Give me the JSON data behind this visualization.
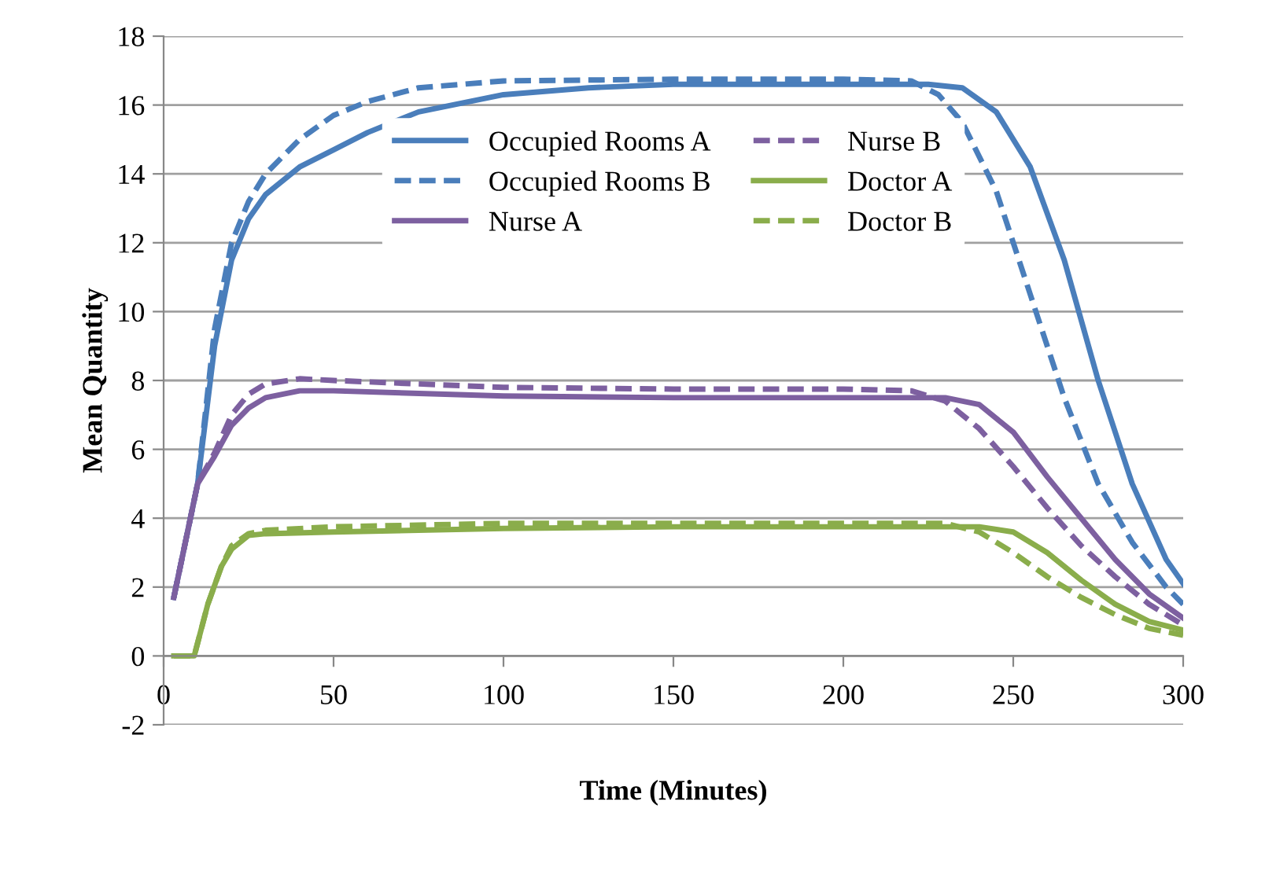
{
  "chart_data": {
    "type": "line",
    "xlabel": "Time (Minutes)",
    "ylabel": "Mean Quantity",
    "xlim": [
      0,
      300
    ],
    "ylim": [
      -2,
      18
    ],
    "xticks": [
      0,
      50,
      100,
      150,
      200,
      250,
      300
    ],
    "yticks": [
      -2,
      0,
      2,
      4,
      6,
      8,
      10,
      12,
      14,
      16,
      18
    ],
    "grid": "y",
    "legend": "top",
    "marker": "none",
    "series": [
      {
        "name": "Occupied Rooms A",
        "color": "#4a7ebb",
        "line_style": "solid",
        "x": [
          3,
          10,
          15,
          20,
          25,
          30,
          40,
          50,
          60,
          75,
          100,
          125,
          150,
          200,
          225,
          235,
          245,
          255,
          265,
          275,
          285,
          295,
          300
        ],
        "values": [
          1.7,
          5,
          9,
          11.5,
          12.7,
          13.4,
          14.2,
          14.7,
          15.2,
          15.8,
          16.3,
          16.5,
          16.6,
          16.6,
          16.6,
          16.5,
          15.8,
          14.2,
          11.5,
          8,
          5,
          2.8,
          2.1
        ]
      },
      {
        "name": "Occupied Rooms B",
        "color": "#4a7ebb",
        "line_style": "dashed",
        "x": [
          3,
          10,
          15,
          20,
          25,
          30,
          40,
          50,
          60,
          75,
          100,
          150,
          200,
          220,
          228,
          235,
          245,
          255,
          265,
          275,
          285,
          295,
          300
        ],
        "values": [
          1.7,
          5,
          9.5,
          12,
          13.2,
          14,
          15,
          15.7,
          16.1,
          16.5,
          16.7,
          16.75,
          16.75,
          16.7,
          16.3,
          15.5,
          13.5,
          10.5,
          7.5,
          5,
          3.3,
          2,
          1.5
        ]
      },
      {
        "name": "Nurse A",
        "color": "#7d60a0",
        "line_style": "solid",
        "x": [
          3,
          10,
          15,
          20,
          25,
          30,
          40,
          50,
          100,
          150,
          200,
          230,
          240,
          250,
          260,
          270,
          280,
          290,
          300
        ],
        "values": [
          1.7,
          5,
          5.8,
          6.7,
          7.2,
          7.5,
          7.7,
          7.7,
          7.55,
          7.5,
          7.5,
          7.5,
          7.3,
          6.5,
          5.2,
          4,
          2.8,
          1.8,
          1.1
        ]
      },
      {
        "name": "Nurse B",
        "color": "#7d60a0",
        "line_style": "dashed",
        "x": [
          3,
          10,
          15,
          20,
          25,
          30,
          40,
          50,
          100,
          150,
          200,
          220,
          230,
          240,
          250,
          260,
          270,
          280,
          290,
          300
        ],
        "values": [
          1.7,
          5,
          5.9,
          7,
          7.6,
          7.9,
          8.05,
          8,
          7.8,
          7.75,
          7.75,
          7.7,
          7.4,
          6.6,
          5.5,
          4.3,
          3.2,
          2.3,
          1.5,
          0.9
        ]
      },
      {
        "name": "Doctor A",
        "color": "#8aad4b",
        "line_style": "solid",
        "x": [
          3,
          9,
          13,
          17,
          20,
          25,
          30,
          50,
          100,
          150,
          200,
          240,
          250,
          260,
          270,
          280,
          290,
          300
        ],
        "values": [
          0,
          0,
          1.5,
          2.6,
          3.1,
          3.5,
          3.55,
          3.6,
          3.7,
          3.75,
          3.75,
          3.75,
          3.6,
          3,
          2.2,
          1.5,
          1,
          0.75
        ]
      },
      {
        "name": "Doctor B",
        "color": "#8aad4b",
        "line_style": "dashed",
        "x": [
          3,
          9,
          13,
          17,
          20,
          25,
          30,
          50,
          100,
          200,
          230,
          240,
          250,
          260,
          270,
          280,
          290,
          300
        ],
        "values": [
          0,
          0,
          1.5,
          2.6,
          3.2,
          3.55,
          3.65,
          3.75,
          3.85,
          3.85,
          3.85,
          3.6,
          3,
          2.3,
          1.7,
          1.2,
          0.8,
          0.6
        ]
      }
    ]
  }
}
